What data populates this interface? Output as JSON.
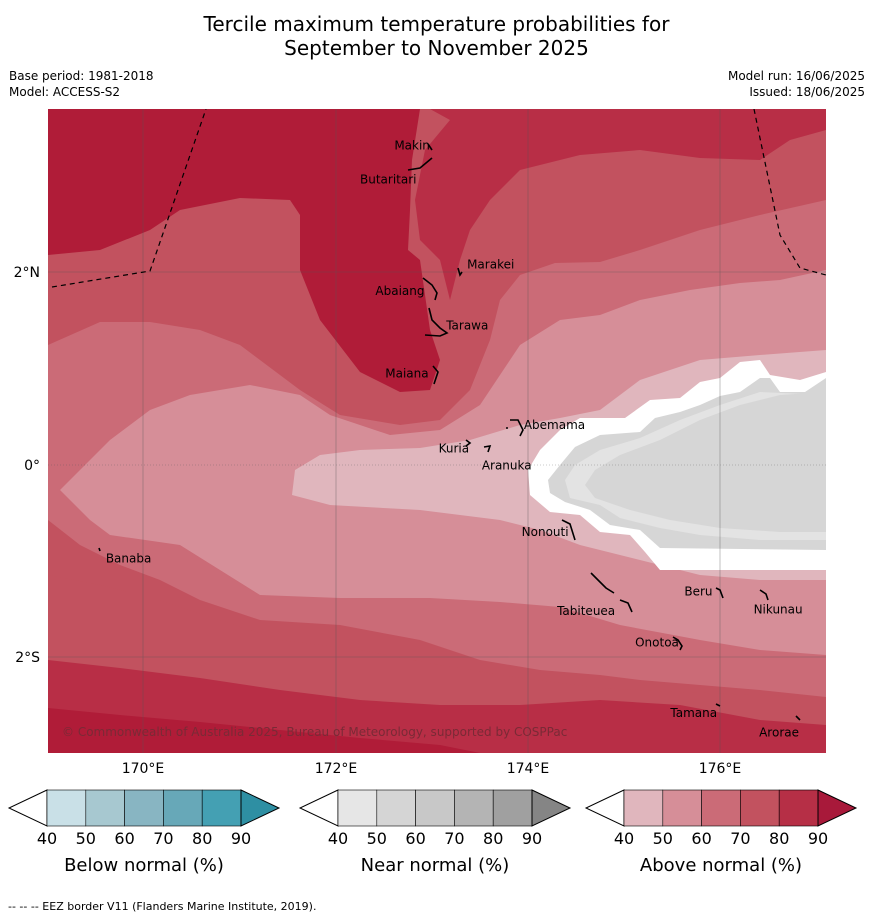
{
  "title_line1": "Tercile maximum temperature probabilities for",
  "title_line2": "September to November 2025",
  "base_period": "Base period: 1981-2018",
  "model": "Model: ACCESS-S2",
  "model_run": "Model run: 16/06/2025",
  "issued": "Issued: 18/06/2025",
  "map": {
    "lon_range": [
      169,
      177.1
    ],
    "lat_range": [
      -3.0,
      3.7
    ],
    "lat_ticks": [
      {
        "value": 2,
        "label": "2°N"
      },
      {
        "value": 0,
        "label": "0°"
      },
      {
        "value": -2,
        "label": "2°S"
      }
    ],
    "lon_ticks": [
      {
        "value": 170,
        "label": "170°E"
      },
      {
        "value": 172,
        "label": "172°E"
      },
      {
        "value": 174,
        "label": "174°E"
      },
      {
        "value": 176,
        "label": "176°E"
      }
    ],
    "places": [
      {
        "name": "Makin",
        "lon": 172.97,
        "lat": 3.3
      },
      {
        "name": "Butaritari",
        "lon": 172.8,
        "lat": 3.05
      },
      {
        "name": "Marakei",
        "lon": 173.28,
        "lat": 2.0
      },
      {
        "name": "Abaiang",
        "lon": 172.95,
        "lat": 1.85
      },
      {
        "name": "Tarawa",
        "lon": 173.0,
        "lat": 1.45
      },
      {
        "name": "Maiana",
        "lon": 172.98,
        "lat": 0.95
      },
      {
        "name": "Abemama",
        "lon": 173.85,
        "lat": 0.4
      },
      {
        "name": "Kuria",
        "lon": 173.4,
        "lat": 0.22
      },
      {
        "name": "Aranuka",
        "lon": 173.6,
        "lat": 0.16
      },
      {
        "name": "Banaba",
        "lon": 169.55,
        "lat": -0.87
      },
      {
        "name": "Nonouti",
        "lon": 174.4,
        "lat": -0.65
      },
      {
        "name": "Tabiteuea",
        "lon": 174.8,
        "lat": -1.4
      },
      {
        "name": "Beru",
        "lon": 176.0,
        "lat": -1.33
      },
      {
        "name": "Nikunau",
        "lon": 176.45,
        "lat": -1.37
      },
      {
        "name": "Onotoa",
        "lon": 175.55,
        "lat": -1.8
      },
      {
        "name": "Tamana",
        "lon": 175.98,
        "lat": -2.5
      },
      {
        "name": "Arorae",
        "lon": 176.82,
        "lat": -2.65
      }
    ],
    "copyright": "© Commonwealth of Australia 2025, Bureau of Meteorology, supported by COSPPac"
  },
  "colorbars": [
    {
      "title": "Below normal (%)",
      "ticks": [
        "40",
        "50",
        "60",
        "70",
        "80",
        "90"
      ],
      "colors": [
        "#ffffff",
        "#c9e0e7",
        "#a7c8d0",
        "#88b5c2",
        "#67a8b8",
        "#44a0b3",
        "#2e8fa3"
      ]
    },
    {
      "title": "Near normal (%)",
      "ticks": [
        "40",
        "50",
        "60",
        "70",
        "80",
        "90"
      ],
      "colors": [
        "#ffffff",
        "#e6e6e6",
        "#d5d5d5",
        "#c8c8c8",
        "#b4b4b4",
        "#a0a0a0",
        "#858585"
      ]
    },
    {
      "title": "Above normal (%)",
      "ticks": [
        "40",
        "50",
        "60",
        "70",
        "80",
        "90"
      ],
      "colors": [
        "#ffffff",
        "#e0b6bd",
        "#d68e98",
        "#cb6b77",
        "#c2525f",
        "#b62f46",
        "#a8193a"
      ]
    }
  ],
  "footer": "--  --  -- EEZ border V11 (Flanders Marine Institute, 2019)."
}
